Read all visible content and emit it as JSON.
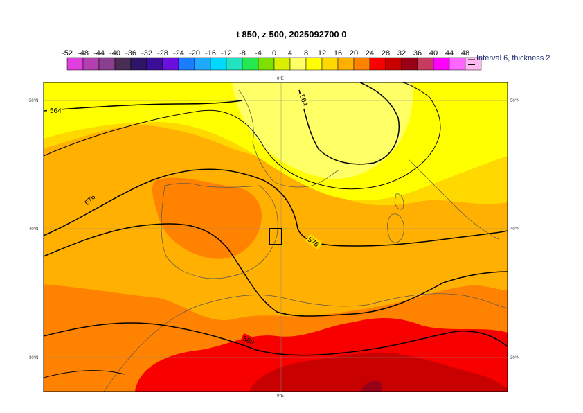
{
  "title": "t 850, z 500, 2025092700 0",
  "legend": {
    "ticks": [
      "-52",
      "-48",
      "-44",
      "-40",
      "-36",
      "-32",
      "-28",
      "-24",
      "-20",
      "-16",
      "-12",
      "-8",
      "-4",
      "0",
      "4",
      "8",
      "12",
      "16",
      "20",
      "24",
      "28",
      "32",
      "36",
      "40",
      "44",
      "48"
    ],
    "colors": [
      "#e13ee0",
      "#b240b0",
      "#8a3e8e",
      "#4b2c55",
      "#2e1568",
      "#3b0e98",
      "#6a0fe0",
      "#1a7cff",
      "#1fa8ff",
      "#00d8ff",
      "#22e3c0",
      "#26e850",
      "#7ee000",
      "#d8f000",
      "#ffff66",
      "#ffff00",
      "#ffd800",
      "#ffb000",
      "#ff8200",
      "#f80000",
      "#c80000",
      "#980018",
      "#c83a60",
      "#ff00ff",
      "#ff66ff",
      "#ffb8f0"
    ],
    "note": "Interval 6, thickness 2"
  },
  "axes": {
    "lat_labels": [
      "50°N",
      "40°N",
      "30°N"
    ],
    "lon_label": "0°E"
  },
  "contours": [
    {
      "label": "564"
    },
    {
      "label": "564"
    },
    {
      "label": "576"
    },
    {
      "label": "576"
    },
    {
      "label": "588"
    }
  ]
}
